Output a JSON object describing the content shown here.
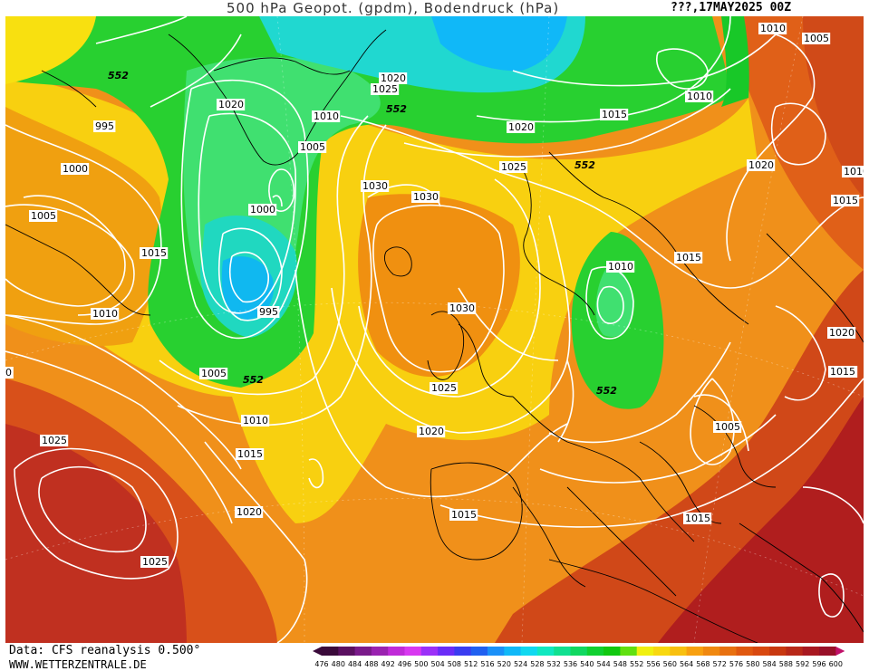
{
  "header": {
    "title": "500 hPa Geopot. (gpdm), Bodendruck (hPa)",
    "date": "???,17MAY2025 00Z"
  },
  "footer": {
    "source": "Data: CFS reanalysis 0.500°",
    "website": "WWW.WETTERZENTRALE.DE"
  },
  "legend": {
    "ticks": [
      "476",
      "480",
      "484",
      "488",
      "492",
      "496",
      "500",
      "504",
      "508",
      "512",
      "516",
      "520",
      "524",
      "528",
      "532",
      "536",
      "540",
      "544",
      "548",
      "552",
      "556",
      "560",
      "564",
      "568",
      "572",
      "576",
      "580",
      "584",
      "588",
      "592",
      "596",
      "600"
    ],
    "colors": [
      "#3a0a3a",
      "#5a1060",
      "#7a1a8a",
      "#9a22b0",
      "#c02ad8",
      "#d838f0",
      "#9b30f8",
      "#6a2cf8",
      "#3a3cf0",
      "#2060f0",
      "#1a90f8",
      "#10b8f8",
      "#10d8f0",
      "#10e8c0",
      "#10e090",
      "#10d860",
      "#10d030",
      "#10c810",
      "#60e010",
      "#f0f010",
      "#f8d810",
      "#f8c010",
      "#f8a010",
      "#f08810",
      "#e87010",
      "#e05810",
      "#d84810",
      "#c83810",
      "#b82818",
      "#a81820",
      "#981028",
      "#c01068"
    ]
  },
  "isobars": [
    {
      "label": "1010"
    },
    {
      "label": "1005"
    },
    {
      "label": "552"
    },
    {
      "label": "1020"
    },
    {
      "label": "995"
    },
    {
      "label": "1015"
    },
    {
      "label": "1025"
    },
    {
      "label": "1020"
    },
    {
      "label": "552"
    },
    {
      "label": "1010"
    },
    {
      "label": "1005"
    },
    {
      "label": "1000"
    },
    {
      "label": "1005"
    },
    {
      "label": "1015"
    },
    {
      "label": "1010"
    },
    {
      "label": "1000"
    },
    {
      "label": "995"
    },
    {
      "label": "1030"
    },
    {
      "label": "1030"
    },
    {
      "label": "1020"
    },
    {
      "label": "1025"
    },
    {
      "label": "552"
    },
    {
      "label": "1015"
    },
    {
      "label": "1010"
    },
    {
      "label": "1020"
    },
    {
      "label": "1010"
    },
    {
      "label": "1015"
    },
    {
      "label": "1010"
    },
    {
      "label": "1030"
    },
    {
      "label": "1025"
    },
    {
      "label": "1005"
    },
    {
      "label": "552"
    },
    {
      "label": "1010"
    },
    {
      "label": "1020"
    },
    {
      "label": "1015"
    },
    {
      "label": "1025"
    },
    {
      "label": "1020"
    },
    {
      "label": "1015"
    },
    {
      "label": "1015"
    },
    {
      "label": "1025"
    },
    {
      "label": "1005"
    },
    {
      "label": "552"
    },
    {
      "label": "1015"
    },
    {
      "label": "1020"
    },
    {
      "label": "1015"
    },
    {
      "label": "0"
    }
  ]
}
